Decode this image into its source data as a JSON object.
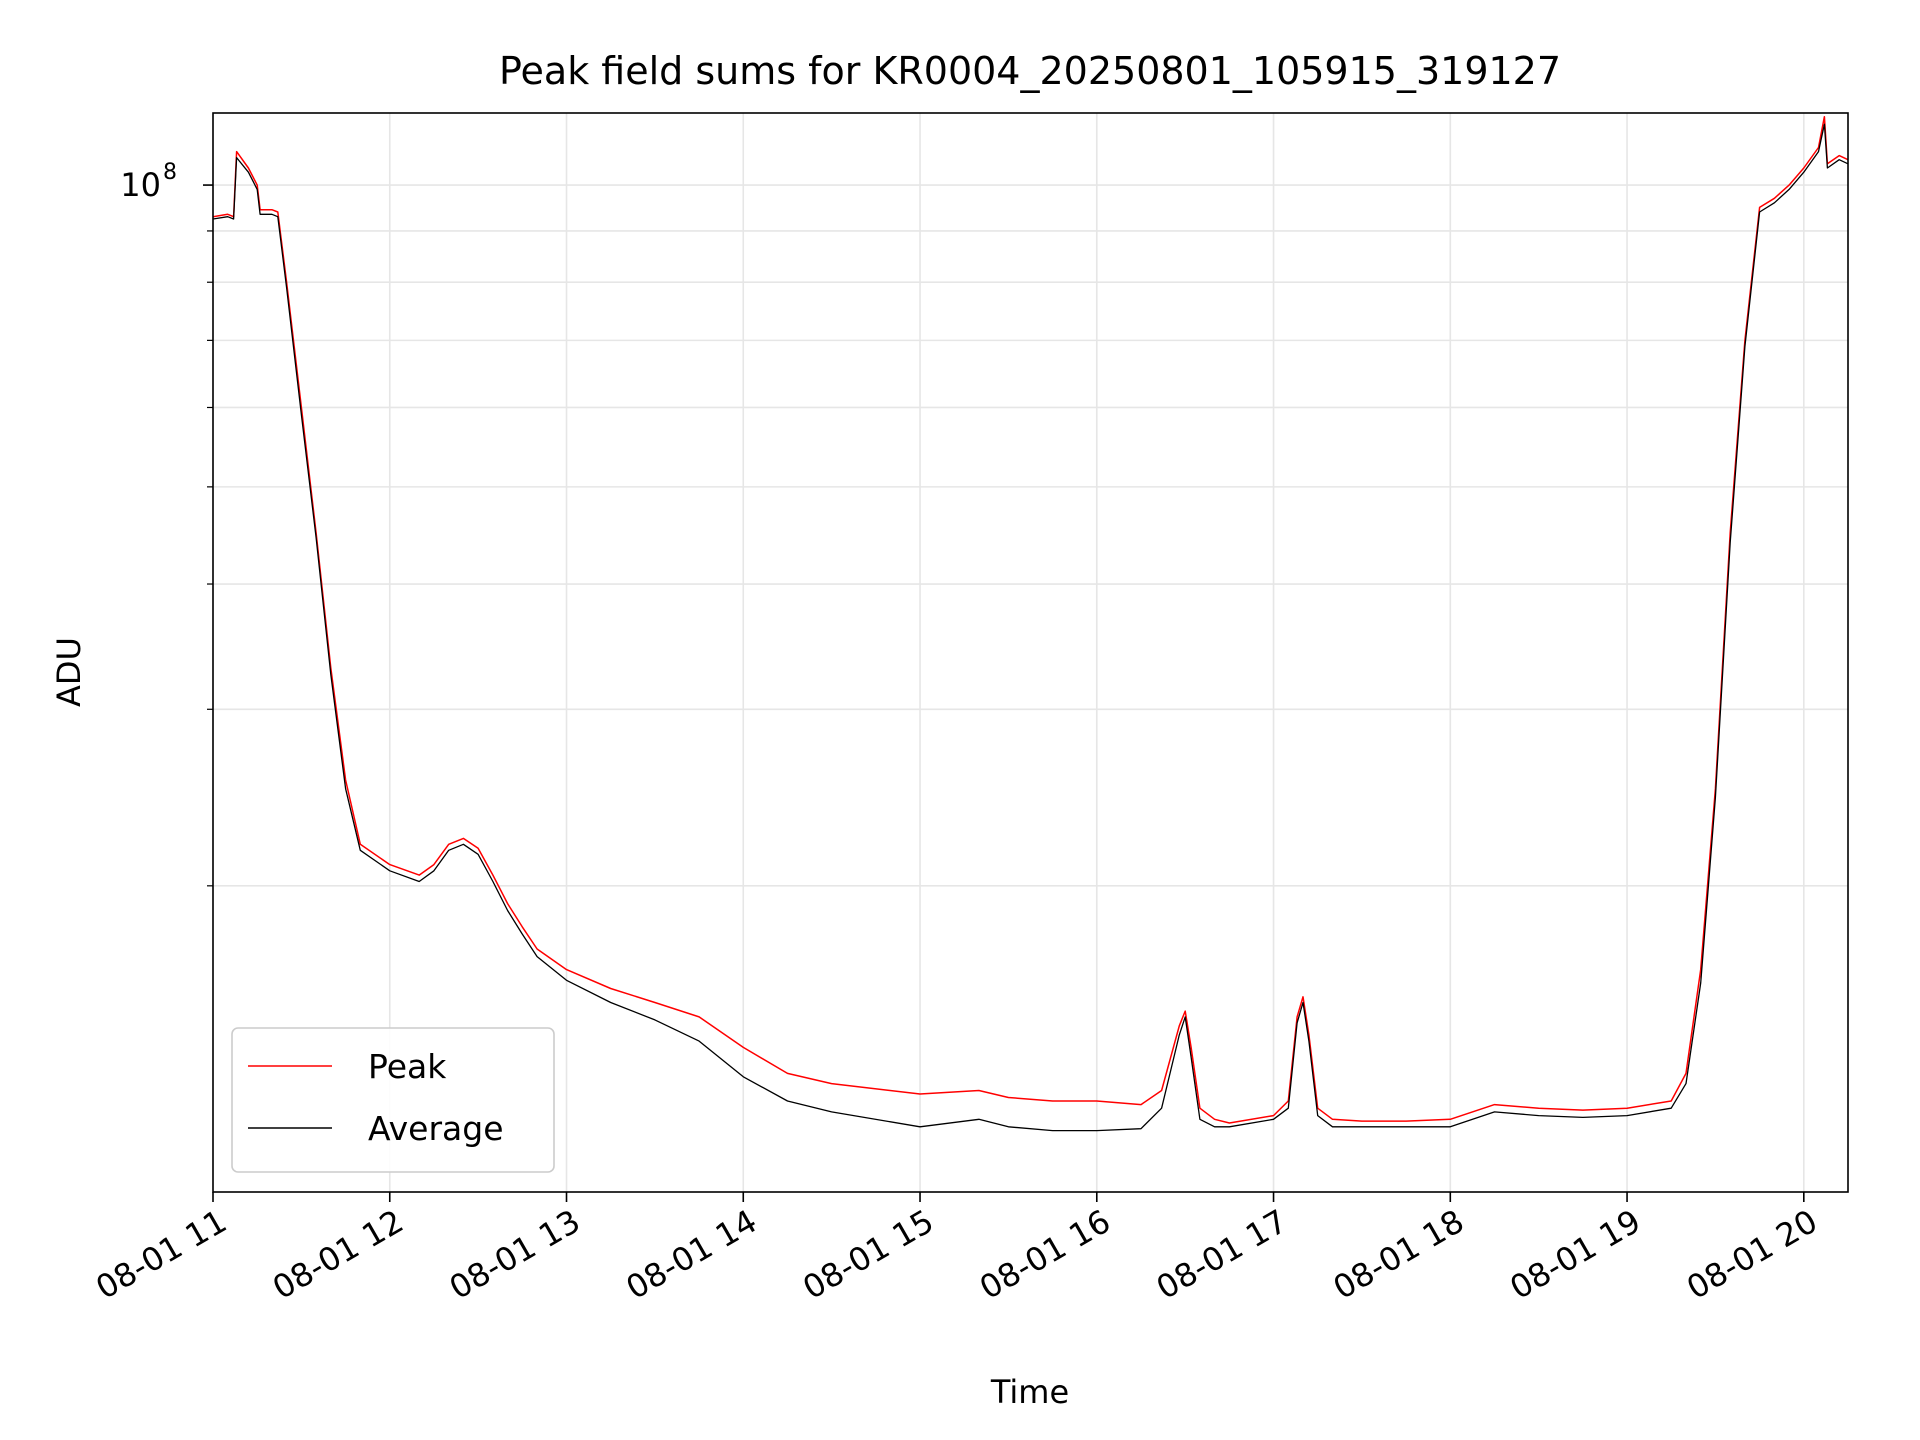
{
  "chart_data": {
    "type": "line",
    "title": "Peak field sums for KR0004_20250801_105915_319127",
    "xlabel": "Time",
    "ylabel": "ADU",
    "x_scale": "time",
    "y_scale": "log",
    "xlim": [
      "08-01 11:00",
      "08-01 20:15"
    ],
    "ylim": [
      9900000,
      118000000
    ],
    "grid": true,
    "legend_position": "lower-left",
    "x_ticks": [
      "08-01 11",
      "08-01 12",
      "08-01 13",
      "08-01 14",
      "08-01 15",
      "08-01 16",
      "08-01 17",
      "08-01 18",
      "08-01 19",
      "08-01 20"
    ],
    "y_ticks": [
      {
        "label": "10",
        "exponent": "8",
        "value": 100000000
      }
    ],
    "y_minor_ticks": [
      20000000,
      30000000,
      40000000,
      50000000,
      60000000,
      70000000,
      80000000,
      90000000
    ],
    "colors": {
      "peak": "#ff0000",
      "average": "#000000",
      "grid": "#e6e6e6"
    },
    "series": [
      {
        "name": "Peak",
        "key": "peak",
        "x": [
          "08-01 11:00",
          "08-01 11:05",
          "08-01 11:07",
          "08-01 11:08",
          "08-01 11:12",
          "08-01 11:15",
          "08-01 11:16",
          "08-01 11:20",
          "08-01 11:22",
          "08-01 11:25",
          "08-01 11:30",
          "08-01 11:35",
          "08-01 11:40",
          "08-01 11:45",
          "08-01 11:50",
          "08-01 12:00",
          "08-01 12:10",
          "08-01 12:15",
          "08-01 12:20",
          "08-01 12:25",
          "08-01 12:30",
          "08-01 12:35",
          "08-01 12:40",
          "08-01 12:45",
          "08-01 12:50",
          "08-01 13:00",
          "08-01 13:15",
          "08-01 13:30",
          "08-01 13:45",
          "08-01 14:00",
          "08-01 14:15",
          "08-01 14:30",
          "08-01 15:00",
          "08-01 15:20",
          "08-01 15:30",
          "08-01 15:45",
          "08-01 16:00",
          "08-01 16:15",
          "08-01 16:22",
          "08-01 16:28",
          "08-01 16:30",
          "08-01 16:32",
          "08-01 16:35",
          "08-01 16:40",
          "08-01 16:45",
          "08-01 17:00",
          "08-01 17:05",
          "08-01 17:08",
          "08-01 17:10",
          "08-01 17:12",
          "08-01 17:15",
          "08-01 17:20",
          "08-01 17:30",
          "08-01 17:45",
          "08-01 18:00",
          "08-01 18:15",
          "08-01 18:30",
          "08-01 18:45",
          "08-01 19:00",
          "08-01 19:15",
          "08-01 19:20",
          "08-01 19:25",
          "08-01 19:30",
          "08-01 19:35",
          "08-01 19:40",
          "08-01 19:45",
          "08-01 19:50",
          "08-01 19:55",
          "08-01 20:00",
          "08-01 20:05",
          "08-01 20:07",
          "08-01 20:08",
          "08-01 20:12",
          "08-01 20:15"
        ],
        "y": [
          93000000,
          93500000,
          93000000,
          108000000,
          104000000,
          100000000,
          94500000,
          94500000,
          94000000,
          80000000,
          60000000,
          45000000,
          33000000,
          25500000,
          22000000,
          21000000,
          20500000,
          21000000,
          22000000,
          22300000,
          21800000,
          20500000,
          19200000,
          18200000,
          17300000,
          16500000,
          15800000,
          15300000,
          14800000,
          13800000,
          13000000,
          12700000,
          12400000,
          12500000,
          12300000,
          12200000,
          12200000,
          12100000,
          12500000,
          14500000,
          15000000,
          13800000,
          12000000,
          11700000,
          11600000,
          11800000,
          12200000,
          14800000,
          15500000,
          14200000,
          12000000,
          11700000,
          11650000,
          11650000,
          11700000,
          12100000,
          12000000,
          11950000,
          12000000,
          12200000,
          13000000,
          16500000,
          25000000,
          45000000,
          70000000,
          95000000,
          97000000,
          100000000,
          104000000,
          109000000,
          117000000,
          105000000,
          107000000,
          106000000
        ]
      },
      {
        "name": "Average",
        "key": "average",
        "x": [
          "08-01 11:00",
          "08-01 11:05",
          "08-01 11:07",
          "08-01 11:08",
          "08-01 11:12",
          "08-01 11:15",
          "08-01 11:16",
          "08-01 11:20",
          "08-01 11:22",
          "08-01 11:25",
          "08-01 11:30",
          "08-01 11:35",
          "08-01 11:40",
          "08-01 11:45",
          "08-01 11:50",
          "08-01 12:00",
          "08-01 12:10",
          "08-01 12:15",
          "08-01 12:20",
          "08-01 12:25",
          "08-01 12:30",
          "08-01 12:35",
          "08-01 12:40",
          "08-01 12:45",
          "08-01 12:50",
          "08-01 13:00",
          "08-01 13:15",
          "08-01 13:30",
          "08-01 13:45",
          "08-01 14:00",
          "08-01 14:15",
          "08-01 14:30",
          "08-01 15:00",
          "08-01 15:20",
          "08-01 15:30",
          "08-01 15:45",
          "08-01 16:00",
          "08-01 16:15",
          "08-01 16:22",
          "08-01 16:28",
          "08-01 16:30",
          "08-01 16:32",
          "08-01 16:35",
          "08-01 16:40",
          "08-01 16:45",
          "08-01 17:00",
          "08-01 17:05",
          "08-01 17:08",
          "08-01 17:10",
          "08-01 17:12",
          "08-01 17:15",
          "08-01 17:20",
          "08-01 17:30",
          "08-01 17:45",
          "08-01 18:00",
          "08-01 18:15",
          "08-01 18:30",
          "08-01 18:45",
          "08-01 19:00",
          "08-01 19:15",
          "08-01 19:20",
          "08-01 19:25",
          "08-01 19:30",
          "08-01 19:35",
          "08-01 19:40",
          "08-01 19:45",
          "08-01 19:50",
          "08-01 19:55",
          "08-01 20:00",
          "08-01 20:05",
          "08-01 20:07",
          "08-01 20:08",
          "08-01 20:12",
          "08-01 20:15"
        ],
        "y": [
          92500000,
          93000000,
          92500000,
          106500000,
          103000000,
          99000000,
          93500000,
          93500000,
          93000000,
          79000000,
          59000000,
          44500000,
          32500000,
          25000000,
          21700000,
          20700000,
          20200000,
          20700000,
          21700000,
          22000000,
          21500000,
          20200000,
          18900000,
          17900000,
          17000000,
          16100000,
          15300000,
          14700000,
          14000000,
          12900000,
          12200000,
          11900000,
          11500000,
          11700000,
          11500000,
          11400000,
          11400000,
          11450000,
          12000000,
          14200000,
          14800000,
          13500000,
          11700000,
          11500000,
          11500000,
          11700000,
          12000000,
          14600000,
          15300000,
          14000000,
          11800000,
          11500000,
          11500000,
          11500000,
          11500000,
          11900000,
          11800000,
          11750000,
          11800000,
          12000000,
          12700000,
          16000000,
          24500000,
          44000000,
          69000000,
          94000000,
          96000000,
          99000000,
          103000000,
          108000000,
          115000000,
          104000000,
          106000000,
          105000000
        ]
      }
    ]
  }
}
